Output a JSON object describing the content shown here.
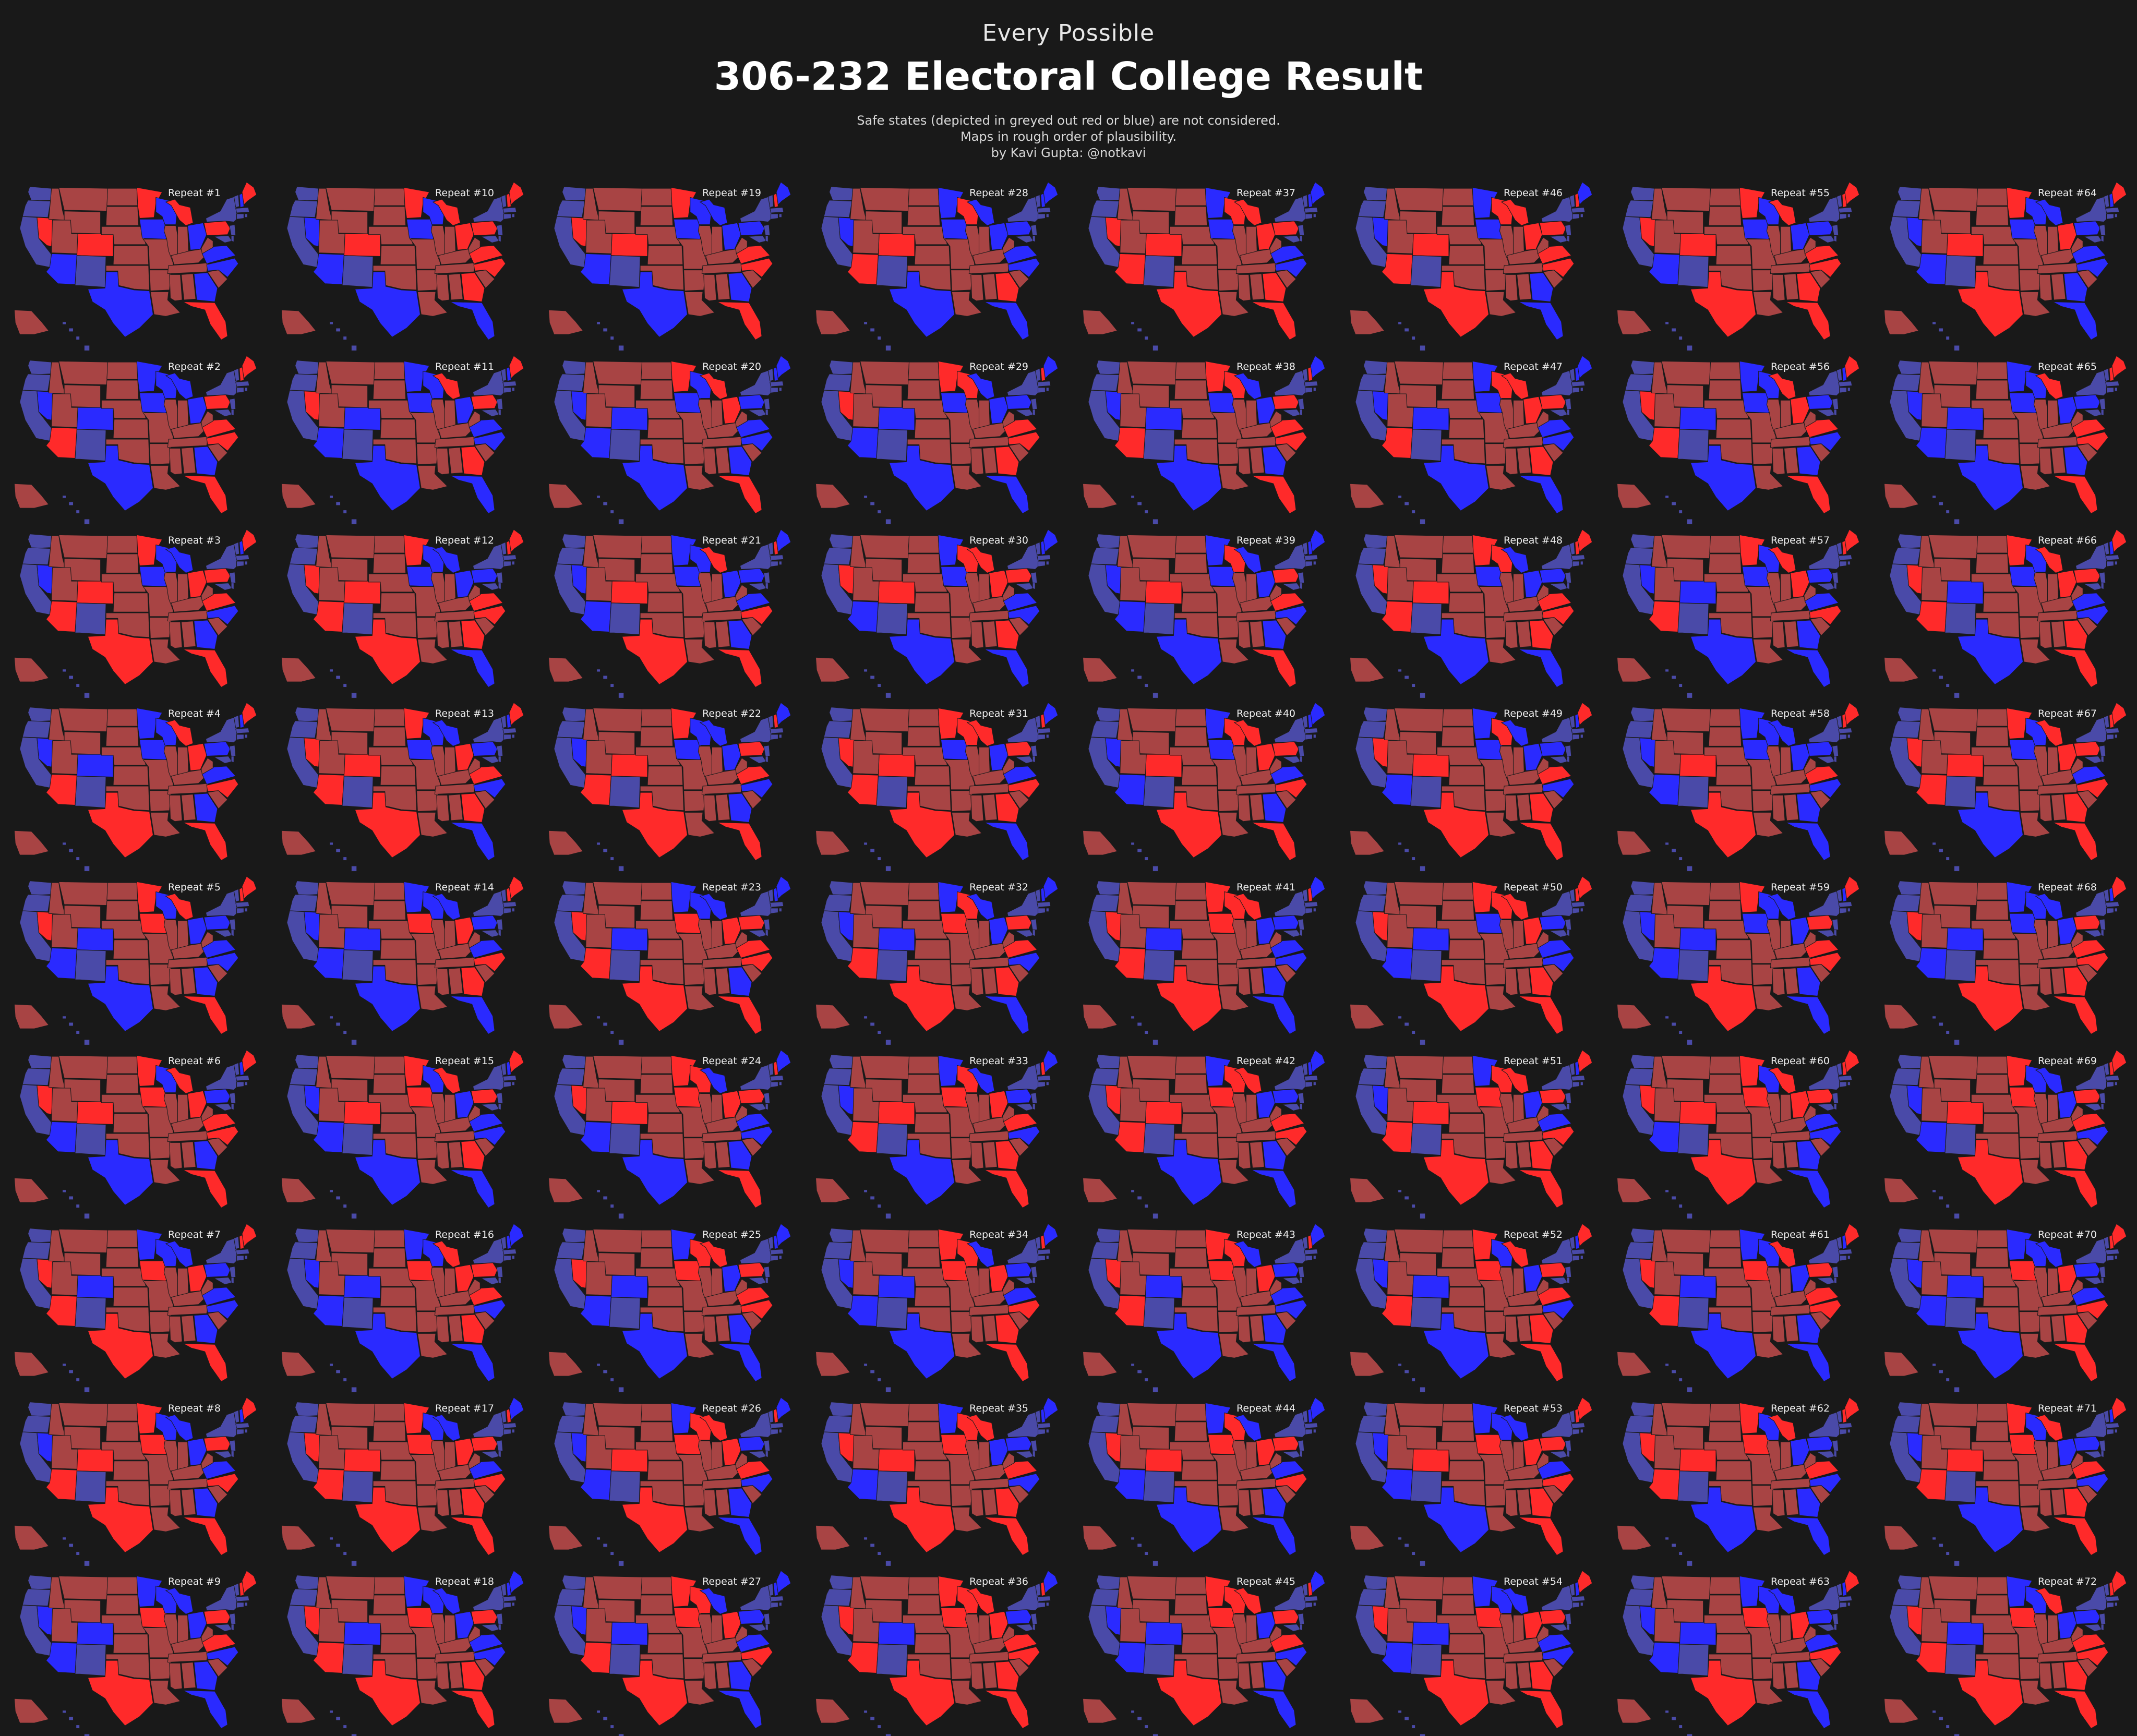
{
  "header": {
    "supertitle": "Every Possible",
    "title": "306-232 Electoral College Result",
    "notes": [
      "Safe states (depicted in greyed out red or blue) are not considered.",
      "Maps in rough order of plausibility.",
      "by Kavi Gupta: @notkavi"
    ]
  },
  "legend_colors": {
    "safe_rep": "#a84444",
    "safe_dem": "#4a4aa8",
    "swing_rep": "#ff2a2a",
    "swing_dem": "#2a2aff",
    "border": "#1b1b1b",
    "background": "#191919"
  },
  "grid": {
    "rows": 9,
    "columns": 8,
    "order": "column-major"
  },
  "maps": [
    {
      "label": "Repeat #1"
    },
    {
      "label": "Repeat #2"
    },
    {
      "label": "Repeat #3"
    },
    {
      "label": "Repeat #4"
    },
    {
      "label": "Repeat #5"
    },
    {
      "label": "Repeat #6"
    },
    {
      "label": "Repeat #7"
    },
    {
      "label": "Repeat #8"
    },
    {
      "label": "Repeat #9"
    },
    {
      "label": "Repeat #10"
    },
    {
      "label": "Repeat #11"
    },
    {
      "label": "Repeat #12"
    },
    {
      "label": "Repeat #13"
    },
    {
      "label": "Repeat #14"
    },
    {
      "label": "Repeat #15"
    },
    {
      "label": "Repeat #16"
    },
    {
      "label": "Repeat #17"
    },
    {
      "label": "Repeat #18"
    },
    {
      "label": "Repeat #19"
    },
    {
      "label": "Repeat #20"
    },
    {
      "label": "Repeat #21"
    },
    {
      "label": "Repeat #22"
    },
    {
      "label": "Repeat #23"
    },
    {
      "label": "Repeat #24"
    },
    {
      "label": "Repeat #25"
    },
    {
      "label": "Repeat #26"
    },
    {
      "label": "Repeat #27"
    },
    {
      "label": "Repeat #28"
    },
    {
      "label": "Repeat #29"
    },
    {
      "label": "Repeat #30"
    },
    {
      "label": "Repeat #31"
    },
    {
      "label": "Repeat #32"
    },
    {
      "label": "Repeat #33"
    },
    {
      "label": "Repeat #34"
    },
    {
      "label": "Repeat #35"
    },
    {
      "label": "Repeat #36"
    },
    {
      "label": "Repeat #37"
    },
    {
      "label": "Repeat #38"
    },
    {
      "label": "Repeat #39"
    },
    {
      "label": "Repeat #40"
    },
    {
      "label": "Repeat #41"
    },
    {
      "label": "Repeat #42"
    },
    {
      "label": "Repeat #43"
    },
    {
      "label": "Repeat #44"
    },
    {
      "label": "Repeat #45"
    },
    {
      "label": "Repeat #46"
    },
    {
      "label": "Repeat #47"
    },
    {
      "label": "Repeat #48"
    },
    {
      "label": "Repeat #49"
    },
    {
      "label": "Repeat #50"
    },
    {
      "label": "Repeat #51"
    },
    {
      "label": "Repeat #52"
    },
    {
      "label": "Repeat #53"
    },
    {
      "label": "Repeat #54"
    },
    {
      "label": "Repeat #55"
    },
    {
      "label": "Repeat #56"
    },
    {
      "label": "Repeat #57"
    },
    {
      "label": "Repeat #58"
    },
    {
      "label": "Repeat #59"
    },
    {
      "label": "Repeat #60"
    },
    {
      "label": "Repeat #61"
    },
    {
      "label": "Repeat #62"
    },
    {
      "label": "Repeat #63"
    },
    {
      "label": "Repeat #64"
    },
    {
      "label": "Repeat #65"
    },
    {
      "label": "Repeat #66"
    },
    {
      "label": "Repeat #67"
    },
    {
      "label": "Repeat #68"
    },
    {
      "label": "Repeat #69"
    },
    {
      "label": "Repeat #70"
    },
    {
      "label": "Repeat #71"
    },
    {
      "label": "Repeat #72"
    }
  ]
}
